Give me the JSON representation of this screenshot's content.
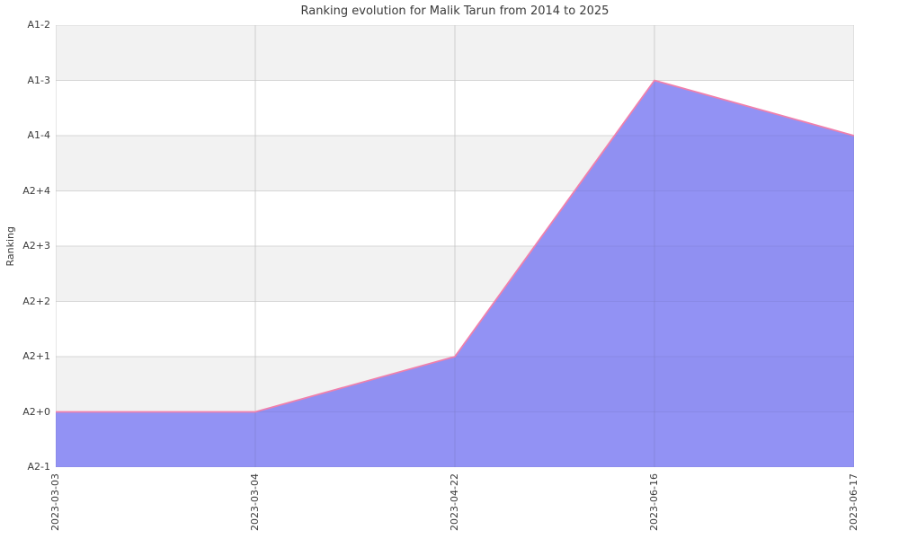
{
  "figure": {
    "title": "Ranking evolution for Malik Tarun from 2014 to 2025",
    "y_axis_label": "Ranking"
  },
  "chart_data": {
    "type": "area",
    "title": "Ranking evolution for Malik Tarun from 2014 to 2025",
    "xlabel": "",
    "ylabel": "Ranking",
    "x": [
      "2023-03-03",
      "2023-03-04",
      "2023-04-22",
      "2023-06-16",
      "2023-06-17"
    ],
    "y_tick_labels_top_to_bottom": [
      "A1-2",
      "A1-3",
      "A1-4",
      "A2+4",
      "A2+3",
      "A2+2",
      "A2+1",
      "A2+0",
      "A2-1"
    ],
    "values": [
      "A2+0",
      "A2+0",
      "A2+1",
      "A1-3",
      "A1-4"
    ],
    "series": [
      {
        "name": "Ranking",
        "values": [
          "A2+0",
          "A2+0",
          "A2+1",
          "A1-3",
          "A1-4"
        ]
      }
    ],
    "baseline": "A2-1",
    "legend": "none",
    "grid": true,
    "band_shading": "alternating horizontal bands, gray topmost",
    "colors": {
      "area_fill": "#7f7ff2",
      "line": "#f080ac",
      "band_gray": "#f2f2f2",
      "band_white": "#ffffff",
      "gridline": "#dedede",
      "text": "#3a3a3a",
      "background": "#ffffff"
    }
  }
}
